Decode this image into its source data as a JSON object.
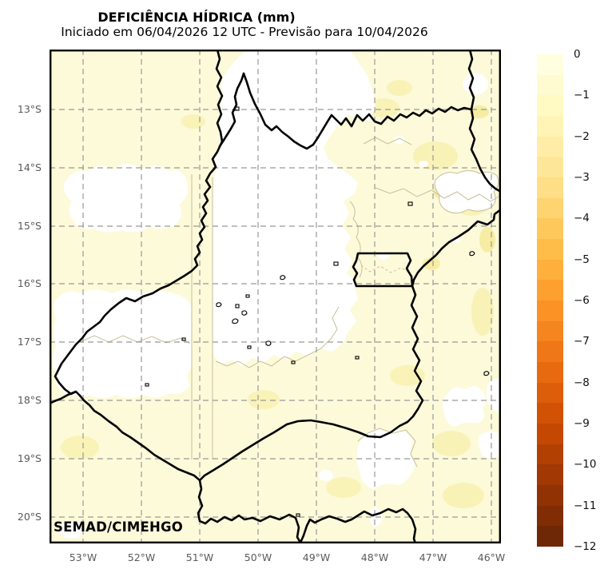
{
  "title": "DEFICIÊNCIA HÍDRICA (mm)",
  "subtitle": "Iniciado em 06/04/2026 12 UTC - Previsão para 10/04/2026",
  "credit": "SEMAD/CIMEHGO",
  "axes": {
    "lat_ticks": [
      "13°S",
      "14°S",
      "15°S",
      "16°S",
      "17°S",
      "18°S",
      "19°S",
      "20°S"
    ],
    "lon_ticks": [
      "53°W",
      "52°W",
      "51°W",
      "50°W",
      "49°W",
      "48°W",
      "47°W",
      "46°W"
    ]
  },
  "colorbar": {
    "tick_labels": [
      "0",
      "−1",
      "−2",
      "−3",
      "−4",
      "−5",
      "−6",
      "−7",
      "−8",
      "−9",
      "−10",
      "−11",
      "−12"
    ],
    "segment_colors": [
      "#FFFEDE",
      "#FFFBD1",
      "#FFF9C3",
      "#FFF4B5",
      "#FFEDA7",
      "#FEE698",
      "#FEDE86",
      "#FED470",
      "#FEC95A",
      "#FEBD49",
      "#FEAF3C",
      "#FEA02F",
      "#FB9226",
      "#F5851F",
      "#EF7718",
      "#E76A11",
      "#DC5E0B",
      "#D15205",
      "#C44802",
      "#B34003",
      "#A23804",
      "#903204",
      "#802D05",
      "#6F2806"
    ]
  },
  "chart_data": {
    "type": "heatmap",
    "title": "DEFICIÊNCIA HÍDRICA (mm)",
    "variable": "water deficiency",
    "units": "mm",
    "scale_max": 0,
    "scale_min": -12,
    "scale_step": 0.5,
    "palette": "yellow-orange-brown (light = 0, dark brown = −12)",
    "extent": {
      "lon_range": [
        "53°W",
        "46°W"
      ],
      "lat_range": [
        "13°S",
        "20°S"
      ]
    },
    "legend_position": "right vertical colorbar",
    "grid": "dashed gray graticule every 1 degree",
    "features": [
      "Goiás state boundary (thick black)",
      "Federal District rectangle (thick black)",
      "white areas ≈ 0 mm deficit",
      "pale yellow areas ≈ 0 to −1 mm"
    ]
  },
  "colors": {
    "map_background": "#FCFAD9",
    "no_deficit": "#FFFFFF",
    "boundary": "#000000",
    "grid": "#999999",
    "minor_contour": "#C6BF99",
    "tick_text": "#5a5a5a"
  }
}
